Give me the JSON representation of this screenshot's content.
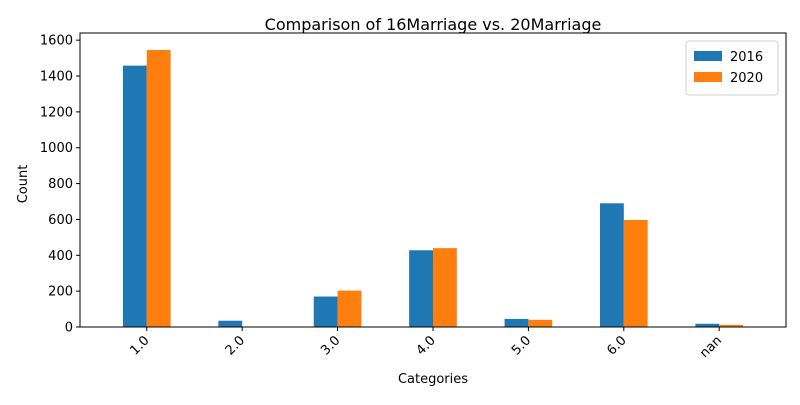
{
  "chart_data": {
    "type": "bar",
    "title": "Comparison of 16Marriage vs. 20Marriage",
    "xlabel": "Categories",
    "ylabel": "Count",
    "categories": [
      "1.0",
      "2.0",
      "3.0",
      "4.0",
      "5.0",
      "6.0",
      "nan"
    ],
    "series": [
      {
        "name": "2016",
        "color": "#1f77b4",
        "values": [
          1458,
          35,
          170,
          428,
          45,
          690,
          18
        ]
      },
      {
        "name": "2020",
        "color": "#ff7f0e",
        "values": [
          1545,
          0,
          203,
          440,
          40,
          597,
          12
        ]
      }
    ],
    "ylim": [
      0,
      1640
    ],
    "yticks": [
      0,
      200,
      400,
      600,
      800,
      1000,
      1200,
      1400,
      1600
    ],
    "x_tick_rotation": 45,
    "grid": false,
    "legend_position": "top-right"
  }
}
